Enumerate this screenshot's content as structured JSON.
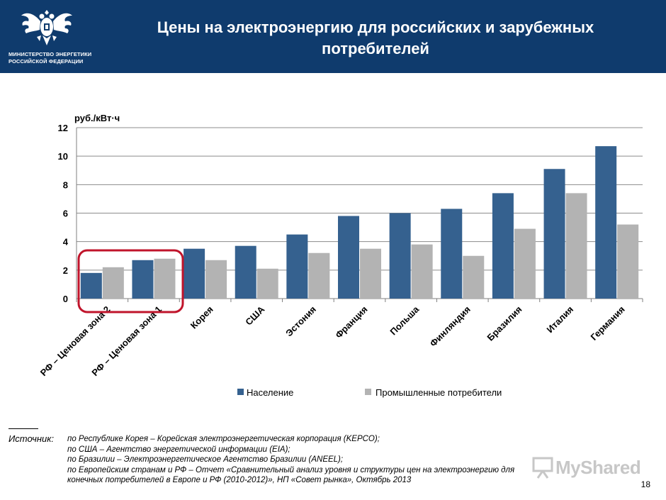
{
  "header": {
    "title_line1": "Цены на электроэнергию для российских и зарубежных",
    "title_line2": "потребителей",
    "ministry_line1": "МИНИСТЕРСТВО ЭНЕРГЕТИКИ",
    "ministry_line2": "РОССИЙСКОЙ ФЕДЕРАЦИИ"
  },
  "chart_data": {
    "type": "bar",
    "ylabel": "руб./кВт·ч",
    "ylim": [
      0,
      12
    ],
    "yticks": [
      0,
      2,
      4,
      6,
      8,
      10,
      12
    ],
    "grid": true,
    "legend_position": "bottom",
    "categories": [
      "РФ – Ценовая зона 2",
      "РФ – Ценовая зона 1",
      "Корея",
      "США",
      "Эстония",
      "Франция",
      "Польша",
      "Финляндия",
      "Бразилия",
      "Италия",
      "Германия"
    ],
    "series": [
      {
        "name": "Население",
        "color": "#35618f",
        "values": [
          1.8,
          2.7,
          3.5,
          3.7,
          4.5,
          5.8,
          6.0,
          6.3,
          7.4,
          9.1,
          10.7
        ]
      },
      {
        "name": "Промышленные потребители",
        "color": "#b3b3b3",
        "values": [
          2.2,
          2.8,
          2.7,
          2.1,
          3.2,
          3.5,
          3.8,
          3.0,
          4.9,
          7.4,
          5.2
        ]
      }
    ],
    "highlight_color": "#c0142b"
  },
  "source": {
    "label": "Источник:",
    "lines": [
      "по Республике Корея – Корейская электроэнергетическая корпорация (KEPCO);",
      "по США – Агентство энергетической информации (EIA);",
      "по Бразилии – Электроэнергетическое Агентство Бразилии (ANEEL);",
      "по Европейским странам и РФ – Отчет «Сравнительный анализ уровня и структуры цен на электроэнергию для",
      "конечных потребителей в Европе и РФ (2010-2012)», НП «Совет рынка», Октябрь 2013"
    ]
  },
  "page_number": "18",
  "watermark": {
    "text": "MyShared",
    "icon": "presentation-board-icon"
  }
}
